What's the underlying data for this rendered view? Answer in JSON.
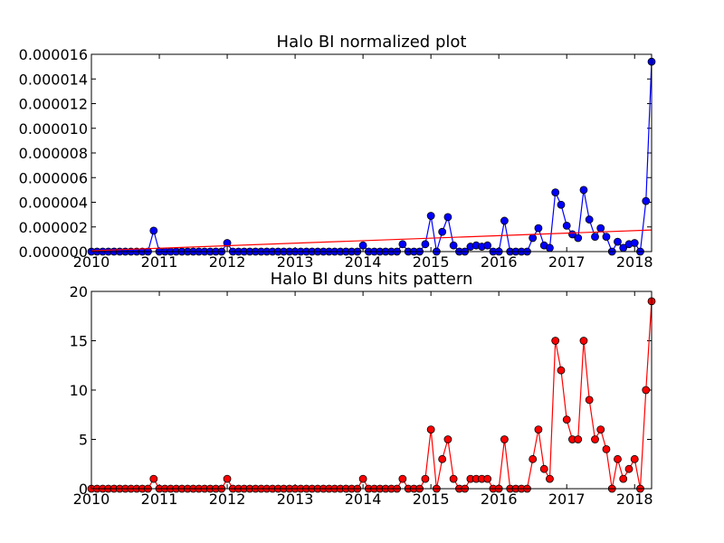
{
  "chart_data": [
    {
      "type": "line",
      "title": "Halo BI normalized plot",
      "x": [
        2010,
        2010.083,
        2010.167,
        2010.25,
        2010.333,
        2010.417,
        2010.5,
        2010.583,
        2010.667,
        2010.75,
        2010.833,
        2010.917,
        2011,
        2011.083,
        2011.167,
        2011.25,
        2011.333,
        2011.417,
        2011.5,
        2011.583,
        2011.667,
        2011.75,
        2011.833,
        2011.917,
        2012,
        2012.083,
        2012.167,
        2012.25,
        2012.333,
        2012.417,
        2012.5,
        2012.583,
        2012.667,
        2012.75,
        2012.833,
        2012.917,
        2013,
        2013.083,
        2013.167,
        2013.25,
        2013.333,
        2013.417,
        2013.5,
        2013.583,
        2013.667,
        2013.75,
        2013.833,
        2013.917,
        2014,
        2014.083,
        2014.167,
        2014.25,
        2014.333,
        2014.417,
        2014.5,
        2014.583,
        2014.667,
        2014.75,
        2014.833,
        2014.917,
        2015,
        2015.083,
        2015.167,
        2015.25,
        2015.333,
        2015.417,
        2015.5,
        2015.583,
        2015.667,
        2015.75,
        2015.833,
        2015.917,
        2016,
        2016.083,
        2016.167,
        2016.25,
        2016.333,
        2016.417,
        2016.5,
        2016.583,
        2016.667,
        2016.75,
        2016.833,
        2016.917,
        2017,
        2017.083,
        2017.167,
        2017.25,
        2017.333,
        2017.417,
        2017.5,
        2017.583,
        2017.667,
        2017.75,
        2017.833,
        2017.917,
        2018,
        2018.083,
        2018.167,
        2018.25
      ],
      "series": [
        {
          "color": "#0000ff",
          "marker": true,
          "values": [
            0,
            0,
            0,
            0,
            0,
            0,
            0,
            0,
            0,
            0,
            0,
            1.7e-06,
            0,
            0,
            0,
            0,
            0,
            0,
            0,
            0,
            0,
            0,
            0,
            0,
            7e-07,
            0,
            0,
            0,
            0,
            0,
            0,
            0,
            0,
            0,
            0,
            0,
            0,
            0,
            0,
            0,
            0,
            0,
            0,
            0,
            0,
            0,
            0,
            0,
            5e-07,
            0,
            0,
            0,
            0,
            0,
            0,
            6e-07,
            0,
            0,
            0,
            6e-07,
            2.9e-06,
            0,
            1.6e-06,
            2.8e-06,
            5e-07,
            0,
            0,
            4e-07,
            5e-07,
            4e-07,
            5e-07,
            0,
            0,
            2.5e-06,
            0,
            0,
            0,
            0,
            1.1e-06,
            1.9e-06,
            5e-07,
            3e-07,
            4.8e-06,
            3.8e-06,
            2.1e-06,
            1.4e-06,
            1.1e-06,
            5e-06,
            2.6e-06,
            1.2e-06,
            1.9e-06,
            1.2e-06,
            0,
            8e-07,
            3e-07,
            6e-07,
            7e-07,
            0,
            4.1e-06,
            1.54e-05
          ]
        },
        {
          "color": "#ff0000",
          "marker": false,
          "x": [
            2010,
            2018.25
          ],
          "values": [
            7e-08,
            1.75e-06
          ]
        }
      ],
      "xlim": [
        2010,
        2018.25
      ],
      "xticks": [
        2010,
        2011,
        2012,
        2013,
        2014,
        2015,
        2016,
        2017,
        2018
      ],
      "ylim": [
        0,
        1.6e-05
      ],
      "yticks": [
        {
          "value": 0,
          "label": "0.000000"
        },
        {
          "value": 2e-06,
          "label": "0.000002"
        },
        {
          "value": 4e-06,
          "label": "0.000004"
        },
        {
          "value": 6e-06,
          "label": "0.000006"
        },
        {
          "value": 8e-06,
          "label": "0.000008"
        },
        {
          "value": 1e-05,
          "label": "0.000010"
        },
        {
          "value": 1.2e-05,
          "label": "0.000012"
        },
        {
          "value": 1.4e-05,
          "label": "0.000014"
        },
        {
          "value": 1.6e-05,
          "label": "0.000016"
        }
      ]
    },
    {
      "type": "line",
      "title": "Halo BI duns hits pattern",
      "x": [
        2010,
        2010.083,
        2010.167,
        2010.25,
        2010.333,
        2010.417,
        2010.5,
        2010.583,
        2010.667,
        2010.75,
        2010.833,
        2010.917,
        2011,
        2011.083,
        2011.167,
        2011.25,
        2011.333,
        2011.417,
        2011.5,
        2011.583,
        2011.667,
        2011.75,
        2011.833,
        2011.917,
        2012,
        2012.083,
        2012.167,
        2012.25,
        2012.333,
        2012.417,
        2012.5,
        2012.583,
        2012.667,
        2012.75,
        2012.833,
        2012.917,
        2013,
        2013.083,
        2013.167,
        2013.25,
        2013.333,
        2013.417,
        2013.5,
        2013.583,
        2013.667,
        2013.75,
        2013.833,
        2013.917,
        2014,
        2014.083,
        2014.167,
        2014.25,
        2014.333,
        2014.417,
        2014.5,
        2014.583,
        2014.667,
        2014.75,
        2014.833,
        2014.917,
        2015,
        2015.083,
        2015.167,
        2015.25,
        2015.333,
        2015.417,
        2015.5,
        2015.583,
        2015.667,
        2015.75,
        2015.833,
        2015.917,
        2016,
        2016.083,
        2016.167,
        2016.25,
        2016.333,
        2016.417,
        2016.5,
        2016.583,
        2016.667,
        2016.75,
        2016.833,
        2016.917,
        2017,
        2017.083,
        2017.167,
        2017.25,
        2017.333,
        2017.417,
        2017.5,
        2017.583,
        2017.667,
        2017.75,
        2017.833,
        2017.917,
        2018,
        2018.083,
        2018.167,
        2018.25
      ],
      "series": [
        {
          "color": "#ff0000",
          "marker": true,
          "values": [
            0,
            0,
            0,
            0,
            0,
            0,
            0,
            0,
            0,
            0,
            0,
            1,
            0,
            0,
            0,
            0,
            0,
            0,
            0,
            0,
            0,
            0,
            0,
            0,
            1,
            0,
            0,
            0,
            0,
            0,
            0,
            0,
            0,
            0,
            0,
            0,
            0,
            0,
            0,
            0,
            0,
            0,
            0,
            0,
            0,
            0,
            0,
            0,
            1,
            0,
            0,
            0,
            0,
            0,
            0,
            1,
            0,
            0,
            0,
            1,
            6,
            0,
            3,
            5,
            1,
            0,
            0,
            1,
            1,
            1,
            1,
            0,
            0,
            5,
            0,
            0,
            0,
            0,
            3,
            6,
            2,
            1,
            15,
            12,
            7,
            5,
            5,
            15,
            9,
            5,
            6,
            4,
            0,
            3,
            1,
            2,
            3,
            0,
            10,
            19
          ]
        }
      ],
      "xlim": [
        2010,
        2018.25
      ],
      "xticks": [
        2010,
        2011,
        2012,
        2013,
        2014,
        2015,
        2016,
        2017,
        2018
      ],
      "ylim": [
        0,
        20
      ],
      "yticks": [
        0,
        5,
        10,
        15,
        20
      ]
    }
  ]
}
